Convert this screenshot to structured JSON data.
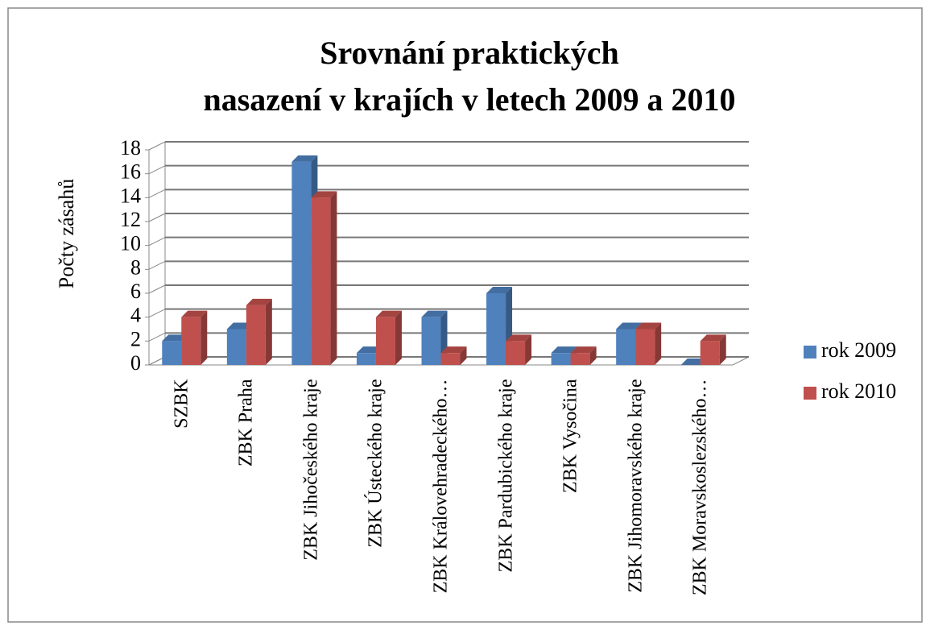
{
  "chart_data": {
    "type": "bar3d",
    "title": [
      "Srovnání praktických",
      "nasazení v krajích v letech 2009 a 2010"
    ],
    "y_label": "Počty zásahů",
    "categories": [
      "SZBK",
      "ZBK Praha",
      "ZBK Jihočeského kraje",
      "ZBK Ústeckého kraje",
      "ZBK Královehradeckého…",
      "ZBK Pardubického kraje",
      "ZBK Vysočina",
      "ZBK Jihomoravského kraje",
      "ZBK Moravskoslezského…"
    ],
    "series": [
      {
        "name": "rok 2009",
        "color": "#4f81bd",
        "values": [
          2,
          3,
          17,
          1,
          4,
          6,
          1,
          3,
          0
        ]
      },
      {
        "name": "rok 2010",
        "color": "#c0504d",
        "values": [
          4,
          5,
          14,
          4,
          1,
          2,
          1,
          3,
          2
        ]
      }
    ],
    "ylim": [
      0,
      18
    ],
    "yticks": [
      0,
      2,
      4,
      6,
      8,
      10,
      12,
      14,
      16,
      18
    ],
    "grid": true,
    "legend": "right"
  }
}
